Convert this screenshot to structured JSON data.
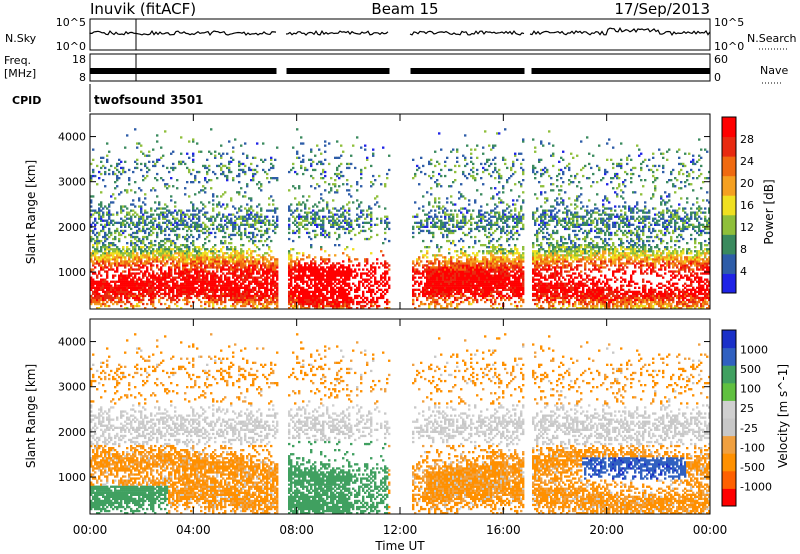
{
  "header": {
    "station": "Inuvik (fitACF)",
    "beam": "Beam 15",
    "date": "17/Sep/2013"
  },
  "strip_labels": {
    "nsky": "N.Sky",
    "nsky_top": "10^5",
    "nsky_bottom": "10^0",
    "nsearch": "N.Search",
    "nsearch_top": "10^5",
    "nsearch_bottom": "10^0",
    "freq_line1": "Freq.",
    "freq_line2": "[MHz]",
    "freq_top": "18",
    "freq_bottom": "8",
    "nave": "Nave",
    "nave_top": "60",
    "nave_bottom": "0",
    "cpid": "CPID",
    "program": "twofsound",
    "program_id": "3501"
  },
  "colors": {
    "power": [
      "#1f23e6",
      "#2e5da8",
      "#3a8a5e",
      "#8fbf3a",
      "#f0e020",
      "#f5a020",
      "#f06a10",
      "#e82a10",
      "#ff0000"
    ],
    "velocity": [
      "#ff0000",
      "#ff6000",
      "#ff9000",
      "#f0a040",
      "#c8c8c8",
      "#d0d0d0",
      "#60c040",
      "#40a060",
      "#3060c0",
      "#1a30c8"
    ]
  },
  "chart_data": [
    {
      "type": "heatmap",
      "title": "Power",
      "xlabel": "",
      "ylabel": "Slant Range [km]",
      "xlim": [
        "00:00",
        "24:00"
      ],
      "ylim": [
        180,
        4500
      ],
      "x_ticks": [
        "00:00",
        "04:00",
        "08:00",
        "12:00",
        "16:00",
        "20:00",
        "00:00"
      ],
      "y_ticks": [
        1000,
        2000,
        3000,
        4000
      ],
      "colorbar": {
        "label": "Power [dB]",
        "ticks": [
          4,
          8,
          12,
          16,
          20,
          24,
          28
        ],
        "range": [
          0,
          32
        ]
      },
      "data_gaps_hours": [
        [
          7.2,
          7.6
        ],
        [
          11.6,
          12.4
        ],
        [
          16.8,
          17.1
        ]
      ]
    },
    {
      "type": "heatmap",
      "title": "Velocity",
      "xlabel": "Time UT",
      "ylabel": "Slant Range [km]",
      "xlim": [
        "00:00",
        "24:00"
      ],
      "ylim": [
        180,
        4500
      ],
      "x_ticks": [
        "00:00",
        "04:00",
        "08:00",
        "12:00",
        "16:00",
        "20:00",
        "00:00"
      ],
      "y_ticks": [
        1000,
        2000,
        3000,
        4000
      ],
      "colorbar": {
        "label": "Velocity [m s^-1]",
        "ticks": [
          "1000",
          "500",
          "100",
          "25",
          "-25",
          "-100",
          "-500",
          "-1000"
        ]
      },
      "data_gaps_hours": [
        [
          7.2,
          7.6
        ],
        [
          11.6,
          12.4
        ],
        [
          16.8,
          17.1
        ]
      ]
    }
  ]
}
